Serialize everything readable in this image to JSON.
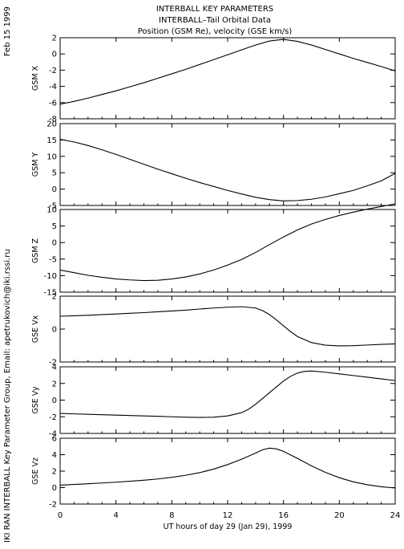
{
  "side_text": {
    "date": "Feb 15 1999",
    "credit": "IKI RAN INTERBALL Key Parameter Group, Email: apetrukovich@iki.rssi.ru"
  },
  "chart_data": {
    "type": "line",
    "title": [
      "INTERBALL KEY PARAMETERS",
      "INTERBALL–Tail Orbital Data",
      "Position (GSM Re), velocity (GSE km/s)"
    ],
    "xlabel": "UT hours of day  29 (Jan 29), 1999",
    "xlim": [
      0,
      24
    ],
    "xticks": [
      0,
      4,
      8,
      12,
      16,
      20,
      24
    ],
    "panels": [
      {
        "name": "GSM X",
        "ylim": [
          -8,
          2
        ],
        "yticks": [
          -8,
          -6,
          -4,
          -2,
          0,
          2
        ],
        "x": [
          0,
          1,
          2,
          3,
          4,
          5,
          6,
          7,
          8,
          9,
          10,
          11,
          12,
          13,
          14,
          15,
          16,
          17,
          18,
          19,
          20,
          21,
          22,
          23,
          24
        ],
        "y": [
          -6.2,
          -5.85,
          -5.45,
          -5.0,
          -4.55,
          -4.05,
          -3.55,
          -3.0,
          -2.45,
          -1.9,
          -1.3,
          -0.7,
          -0.1,
          0.5,
          1.1,
          1.6,
          1.8,
          1.55,
          1.1,
          0.55,
          0.0,
          -0.55,
          -1.05,
          -1.55,
          -2.1
        ]
      },
      {
        "name": "GSM Y",
        "ylim": [
          -5,
          20
        ],
        "yticks": [
          -5,
          0,
          5,
          10,
          15,
          20
        ],
        "x": [
          0,
          1,
          2,
          3,
          4,
          5,
          6,
          7,
          8,
          9,
          10,
          11,
          12,
          13,
          14,
          15,
          16,
          17,
          18,
          19,
          20,
          21,
          22,
          23,
          24
        ],
        "y": [
          15.2,
          14.4,
          13.3,
          12.0,
          10.6,
          9.1,
          7.6,
          6.1,
          4.7,
          3.3,
          2.0,
          0.8,
          -0.4,
          -1.5,
          -2.5,
          -3.2,
          -3.6,
          -3.5,
          -3.1,
          -2.4,
          -1.4,
          -0.4,
          1.0,
          2.5,
          4.8
        ]
      },
      {
        "name": "GSM Z",
        "ylim": [
          -15,
          10
        ],
        "yticks": [
          -15,
          -10,
          -5,
          0,
          5,
          10
        ],
        "x": [
          0,
          1,
          2,
          3,
          4,
          5,
          6,
          7,
          8,
          9,
          10,
          11,
          12,
          13,
          14,
          15,
          16,
          17,
          18,
          19,
          20,
          21,
          22,
          23,
          24
        ],
        "y": [
          -8.3,
          -9.1,
          -9.9,
          -10.5,
          -11.0,
          -11.3,
          -11.5,
          -11.4,
          -11.0,
          -10.4,
          -9.5,
          -8.3,
          -6.8,
          -5.1,
          -3.0,
          -0.6,
          1.7,
          3.8,
          5.6,
          7.0,
          8.2,
          9.2,
          10.1,
          10.9,
          11.7
        ]
      },
      {
        "name": "GSE Vx",
        "ylim": [
          -2,
          2
        ],
        "yticks": [
          -2,
          0,
          2
        ],
        "x": [
          0,
          1,
          2,
          3,
          4,
          5,
          6,
          7,
          8,
          9,
          10,
          11,
          12,
          13,
          14,
          14.5,
          15,
          15.5,
          16,
          16.5,
          17,
          18,
          19,
          20,
          21,
          22,
          23,
          24
        ],
        "y": [
          0.78,
          0.81,
          0.84,
          0.88,
          0.92,
          0.96,
          1.0,
          1.05,
          1.1,
          1.15,
          1.22,
          1.28,
          1.33,
          1.36,
          1.28,
          1.12,
          0.88,
          0.55,
          0.2,
          -0.15,
          -0.45,
          -0.82,
          -0.98,
          -1.02,
          -1.01,
          -0.97,
          -0.93,
          -0.9
        ]
      },
      {
        "name": "GSE Vy",
        "ylim": [
          -4,
          4
        ],
        "yticks": [
          -4,
          -2,
          0,
          2,
          4
        ],
        "x": [
          0,
          1,
          2,
          3,
          4,
          5,
          6,
          7,
          8,
          9,
          10,
          11,
          12,
          13,
          13.5,
          14,
          14.5,
          15,
          15.5,
          16,
          16.5,
          17,
          17.5,
          18,
          19,
          20,
          21,
          22,
          23,
          24
        ],
        "y": [
          -1.6,
          -1.65,
          -1.7,
          -1.75,
          -1.8,
          -1.85,
          -1.9,
          -1.95,
          -2.0,
          -2.05,
          -2.08,
          -2.05,
          -1.9,
          -1.5,
          -1.1,
          -0.5,
          0.2,
          0.9,
          1.6,
          2.3,
          2.85,
          3.25,
          3.45,
          3.5,
          3.35,
          3.15,
          2.95,
          2.75,
          2.55,
          2.35
        ]
      },
      {
        "name": "GSE Vz",
        "ylim": [
          -2,
          6
        ],
        "yticks": [
          -2,
          0,
          2,
          4,
          6
        ],
        "x": [
          0,
          1,
          2,
          3,
          4,
          5,
          6,
          7,
          8,
          9,
          10,
          11,
          12,
          13,
          14,
          14.5,
          15,
          15.5,
          16,
          17,
          18,
          19,
          20,
          21,
          22,
          23,
          24
        ],
        "y": [
          0.3,
          0.38,
          0.47,
          0.56,
          0.66,
          0.77,
          0.9,
          1.05,
          1.25,
          1.5,
          1.82,
          2.25,
          2.8,
          3.45,
          4.2,
          4.6,
          4.8,
          4.7,
          4.4,
          3.55,
          2.65,
          1.85,
          1.2,
          0.7,
          0.35,
          0.1,
          -0.05
        ]
      }
    ]
  }
}
